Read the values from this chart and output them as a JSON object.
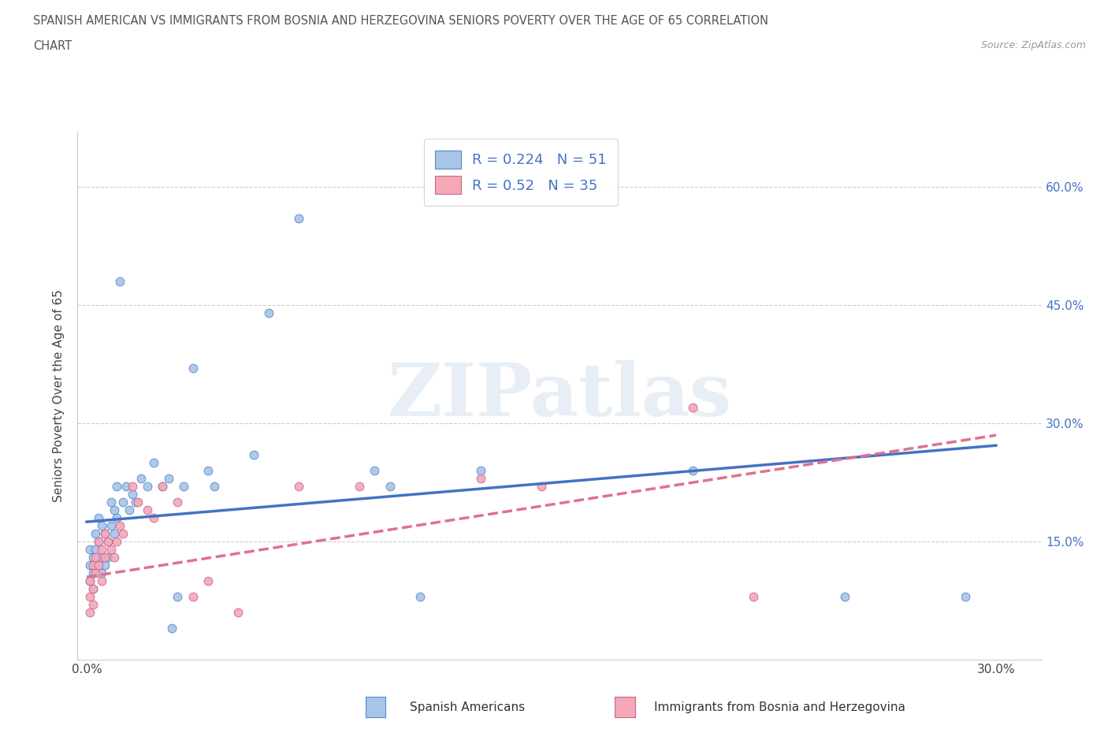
{
  "title_line1": "SPANISH AMERICAN VS IMMIGRANTS FROM BOSNIA AND HERZEGOVINA SENIORS POVERTY OVER THE AGE OF 65 CORRELATION",
  "title_line2": "CHART",
  "source": "Source: ZipAtlas.com",
  "ylabel": "Seniors Poverty Over the Age of 65",
  "R_blue": 0.224,
  "N_blue": 51,
  "R_pink": 0.52,
  "N_pink": 35,
  "color_blue_fill": "#a8c4e8",
  "color_blue_edge": "#5588cc",
  "color_pink_fill": "#f4a8b8",
  "color_pink_edge": "#cc6688",
  "color_blue_line": "#4472c4",
  "color_pink_line": "#e07090",
  "watermark_text": "ZIPatlas",
  "legend_label_blue": "Spanish Americans",
  "legend_label_pink": "Immigrants from Bosnia and Herzegovina",
  "blue_x": [
    0.001,
    0.001,
    0.001,
    0.002,
    0.002,
    0.002,
    0.003,
    0.003,
    0.003,
    0.004,
    0.004,
    0.005,
    0.005,
    0.005,
    0.006,
    0.006,
    0.007,
    0.007,
    0.008,
    0.008,
    0.009,
    0.009,
    0.01,
    0.01,
    0.011,
    0.012,
    0.013,
    0.014,
    0.015,
    0.016,
    0.018,
    0.02,
    0.022,
    0.025,
    0.027,
    0.028,
    0.03,
    0.032,
    0.035,
    0.04,
    0.042,
    0.055,
    0.06,
    0.07,
    0.095,
    0.1,
    0.11,
    0.13,
    0.2,
    0.25,
    0.29
  ],
  "blue_y": [
    0.14,
    0.12,
    0.1,
    0.13,
    0.11,
    0.09,
    0.16,
    0.14,
    0.12,
    0.18,
    0.15,
    0.17,
    0.13,
    0.11,
    0.16,
    0.12,
    0.15,
    0.13,
    0.2,
    0.17,
    0.19,
    0.16,
    0.22,
    0.18,
    0.48,
    0.2,
    0.22,
    0.19,
    0.21,
    0.2,
    0.23,
    0.22,
    0.25,
    0.22,
    0.23,
    0.04,
    0.08,
    0.22,
    0.37,
    0.24,
    0.22,
    0.26,
    0.44,
    0.56,
    0.24,
    0.22,
    0.08,
    0.24,
    0.24,
    0.08,
    0.08
  ],
  "pink_x": [
    0.001,
    0.001,
    0.001,
    0.002,
    0.002,
    0.002,
    0.003,
    0.003,
    0.004,
    0.004,
    0.005,
    0.005,
    0.006,
    0.006,
    0.007,
    0.008,
    0.009,
    0.01,
    0.011,
    0.012,
    0.015,
    0.017,
    0.02,
    0.022,
    0.025,
    0.03,
    0.035,
    0.04,
    0.05,
    0.07,
    0.09,
    0.13,
    0.15,
    0.2,
    0.22
  ],
  "pink_y": [
    0.1,
    0.08,
    0.06,
    0.12,
    0.09,
    0.07,
    0.13,
    0.11,
    0.15,
    0.12,
    0.14,
    0.1,
    0.16,
    0.13,
    0.15,
    0.14,
    0.13,
    0.15,
    0.17,
    0.16,
    0.22,
    0.2,
    0.19,
    0.18,
    0.22,
    0.2,
    0.08,
    0.1,
    0.06,
    0.22,
    0.22,
    0.23,
    0.22,
    0.32,
    0.08
  ],
  "xlim_min": -0.003,
  "xlim_max": 0.315,
  "ylim_min": 0.0,
  "ylim_max": 0.67,
  "xtick_positions": [
    0.0,
    0.05,
    0.1,
    0.15,
    0.2,
    0.25,
    0.3
  ],
  "xtick_labels": [
    "0.0%",
    "",
    "",
    "",
    "",
    "",
    "30.0%"
  ],
  "ytick_positions": [
    0.15,
    0.3,
    0.45,
    0.6
  ],
  "ytick_labels": [
    "15.0%",
    "30.0%",
    "45.0%",
    "60.0%"
  ],
  "blue_line_x0": 0.0,
  "blue_line_x1": 0.3,
  "blue_line_y0": 0.175,
  "blue_line_y1": 0.272,
  "pink_line_x0": 0.0,
  "pink_line_x1": 0.3,
  "pink_line_y0": 0.105,
  "pink_line_y1": 0.285,
  "background_color": "#ffffff",
  "grid_color": "#cccccc"
}
